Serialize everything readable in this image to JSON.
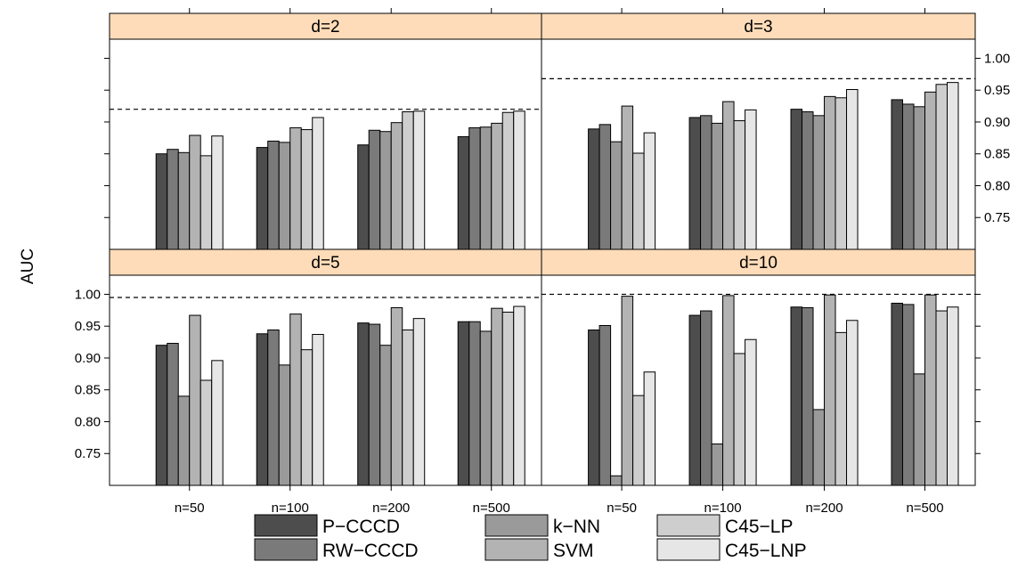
{
  "chart_data": {
    "type": "bar",
    "ylabel": "AUC",
    "ylim": [
      0.7,
      1.03
    ],
    "yticks": [
      "0.75",
      "0.80",
      "0.85",
      "0.90",
      "0.95",
      "1.00"
    ],
    "categories": [
      "n=50",
      "n=100",
      "n=200",
      "n=500"
    ],
    "series_names": [
      "P−CCCD",
      "RW−CCCD",
      "k−NN",
      "SVM",
      "C45−LP",
      "C45−LNP"
    ],
    "series_colors": [
      "#4d4d4d",
      "#7a7a7a",
      "#9a9a9a",
      "#b3b3b3",
      "#cecece",
      "#e6e6e6"
    ],
    "strip_color": "#ffdcb9",
    "legend_position": "bottom",
    "panels": [
      {
        "label": "d=2",
        "reference": 0.92,
        "values": [
          [
            0.85,
            0.857,
            0.852,
            0.879,
            0.847,
            0.878
          ],
          [
            0.86,
            0.87,
            0.868,
            0.891,
            0.888,
            0.907
          ],
          [
            0.864,
            0.887,
            0.885,
            0.899,
            0.916,
            0.917
          ],
          [
            0.877,
            0.891,
            0.892,
            0.898,
            0.915,
            0.917
          ]
        ]
      },
      {
        "label": "d=3",
        "reference": 0.968,
        "values": [
          [
            0.889,
            0.896,
            0.869,
            0.925,
            0.851,
            0.883
          ],
          [
            0.907,
            0.91,
            0.898,
            0.932,
            0.902,
            0.919
          ],
          [
            0.92,
            0.916,
            0.91,
            0.94,
            0.938,
            0.951
          ],
          [
            0.935,
            0.928,
            0.924,
            0.947,
            0.959,
            0.962
          ]
        ]
      },
      {
        "label": "d=5",
        "reference": 0.995,
        "values": [
          [
            0.92,
            0.923,
            0.84,
            0.967,
            0.865,
            0.896
          ],
          [
            0.938,
            0.944,
            0.889,
            0.969,
            0.913,
            0.937
          ],
          [
            0.955,
            0.953,
            0.92,
            0.979,
            0.944,
            0.962
          ],
          [
            0.957,
            0.957,
            0.942,
            0.978,
            0.972,
            0.981
          ]
        ]
      },
      {
        "label": "d=10",
        "reference": 1.0,
        "values": [
          [
            0.944,
            0.951,
            0.715,
            0.997,
            0.841,
            0.878
          ],
          [
            0.967,
            0.974,
            0.765,
            0.998,
            0.907,
            0.929
          ],
          [
            0.98,
            0.979,
            0.819,
            0.999,
            0.94,
            0.959
          ],
          [
            0.986,
            0.984,
            0.875,
            0.999,
            0.974,
            0.98
          ]
        ]
      }
    ]
  }
}
